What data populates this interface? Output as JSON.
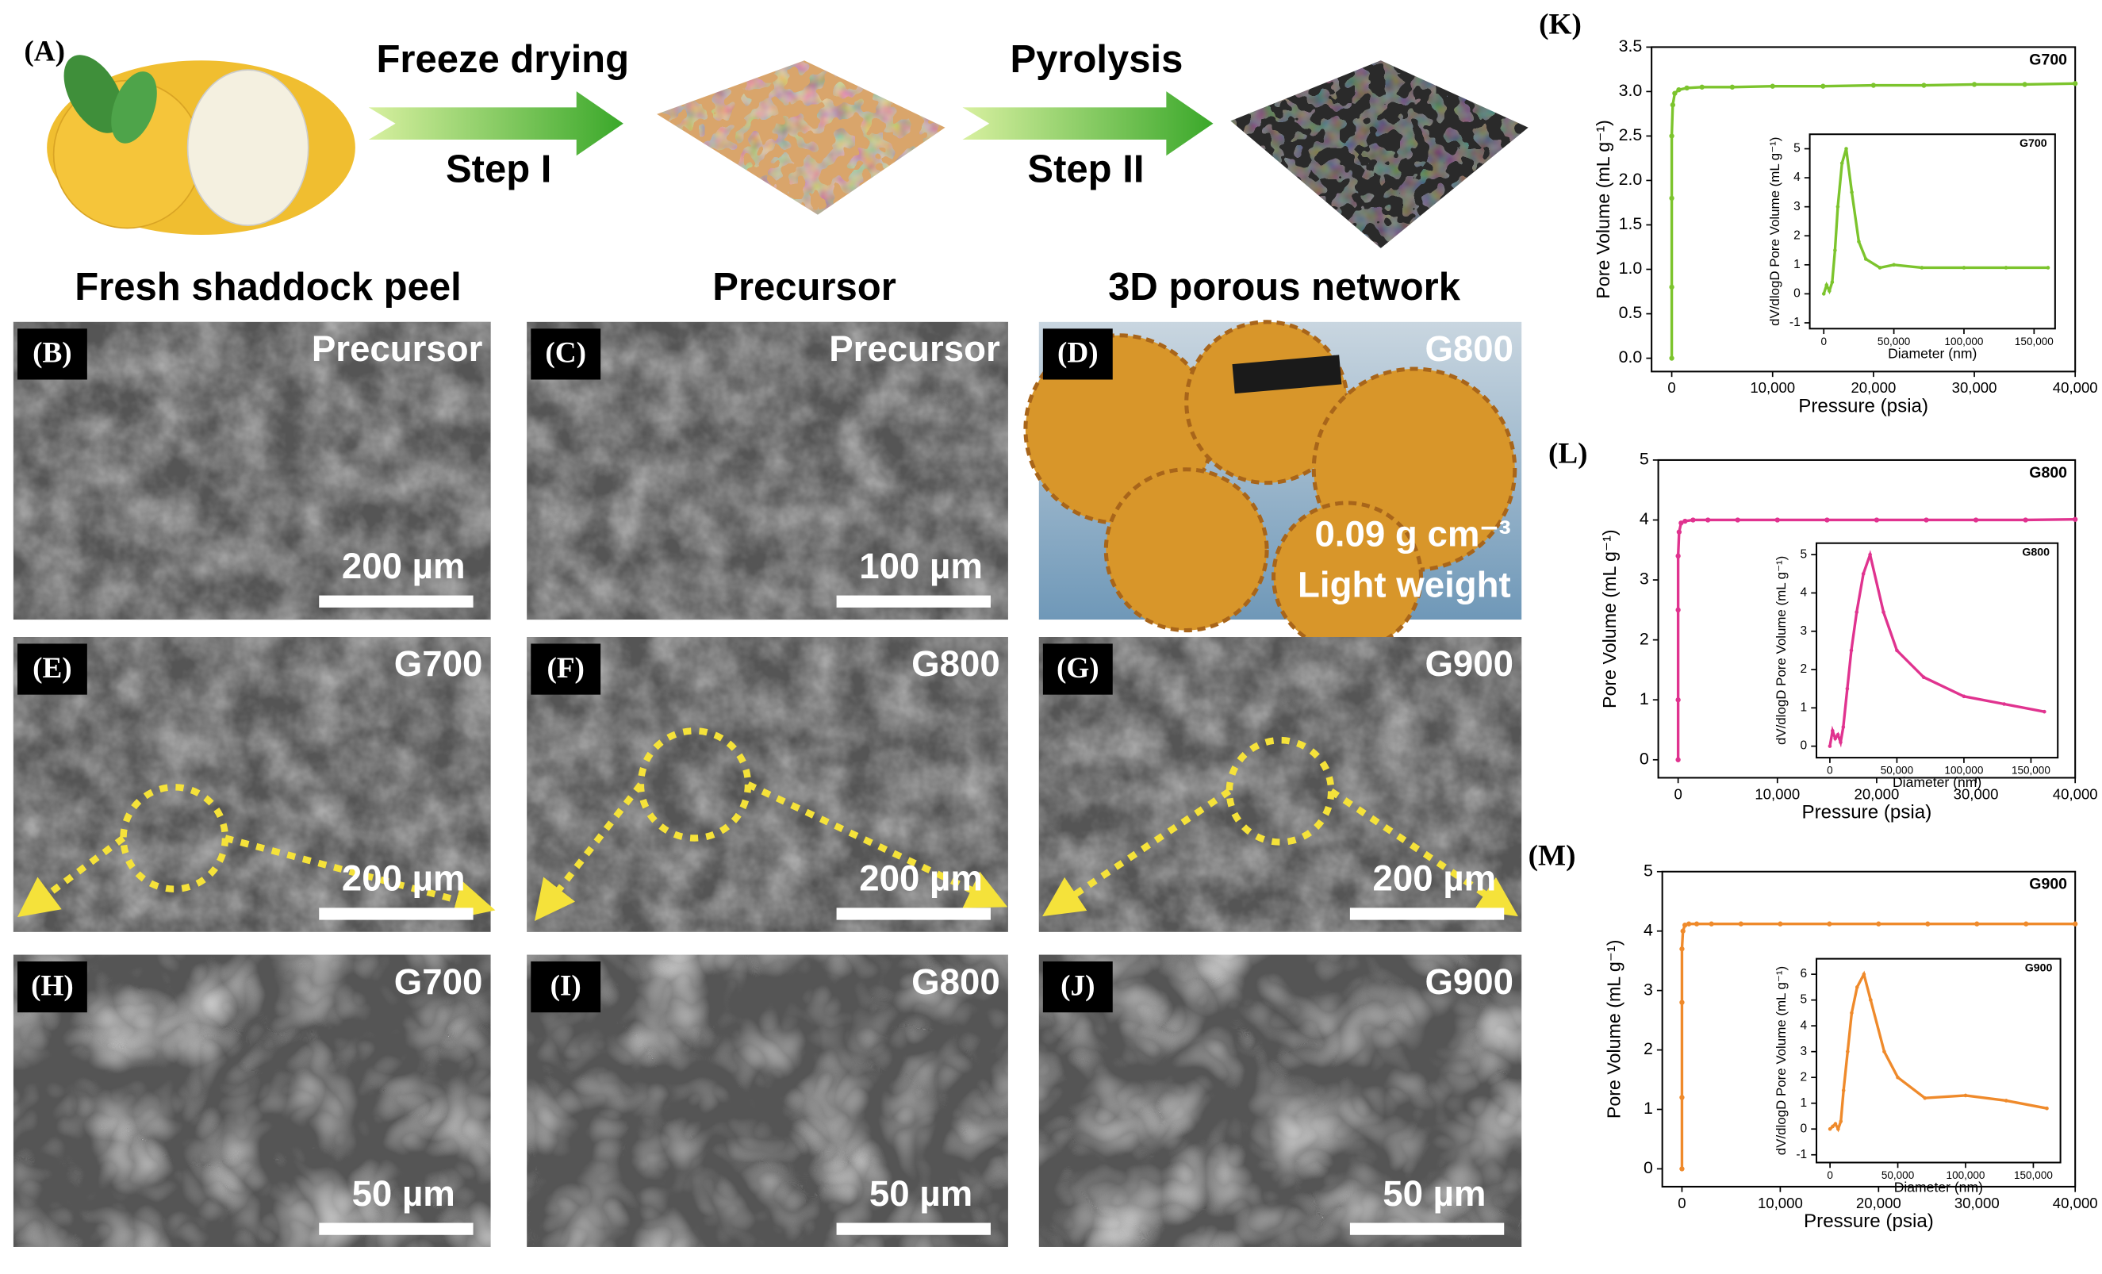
{
  "figure": {
    "panel_a": {
      "label": "(A)",
      "step1_name": "Freeze drying",
      "step1": "Step I",
      "step2_name": "Pyrolysis",
      "step2": "Step II"
    },
    "headers": [
      "Fresh shaddock peel",
      "Precursor",
      "3D porous network"
    ],
    "panels": [
      {
        "label": "(B)",
        "sample": "Precursor",
        "scale": "200 µm"
      },
      {
        "label": "(C)",
        "sample": "Precursor",
        "scale": "100 µm"
      },
      {
        "label": "(D)",
        "sample": "G800",
        "density": "0.09 g cm⁻³",
        "note": "Light weight"
      },
      {
        "label": "(E)",
        "sample": "G700",
        "scale": "200 µm"
      },
      {
        "label": "(F)",
        "sample": "G800",
        "scale": "200 µm"
      },
      {
        "label": "(G)",
        "sample": "G900",
        "scale": "200 µm"
      },
      {
        "label": "(H)",
        "sample": "G700",
        "scale": "50 µm"
      },
      {
        "label": "(I)",
        "sample": "G800",
        "scale": "50 µm"
      },
      {
        "label": "(J)",
        "sample": "G900",
        "scale": "50 µm"
      }
    ]
  },
  "chart_data": [
    {
      "type": "line",
      "panel": "(K)",
      "xlabel": "Pressure (psia)",
      "ylabel": "Pore Volume (mL g⁻¹)",
      "xlim": [
        -2000,
        40000
      ],
      "ylim": [
        -0.15,
        3.5
      ],
      "xticks": [
        0,
        {
          "value": 10000,
          "label": "10,000"
        },
        {
          "value": 20000,
          "label": "20,000"
        },
        {
          "value": 30000,
          "label": "30,000"
        },
        {
          "value": 40000,
          "label": "40,000"
        }
      ],
      "yticks": [
        {
          "value": 0,
          "label": "0.0"
        },
        {
          "value": 0.5,
          "label": "0.5"
        },
        {
          "value": 1,
          "label": "1.0"
        },
        {
          "value": 1.5,
          "label": "1.5"
        },
        {
          "value": 2,
          "label": "2.0"
        },
        {
          "value": 2.5,
          "label": "2.5"
        },
        {
          "value": 3,
          "label": "3.0"
        },
        {
          "value": 3.5,
          "label": "3.5"
        }
      ],
      "series": [
        {
          "name": "G700",
          "color": "#7cc42d",
          "x": [
            0,
            0,
            0,
            0,
            100,
            300,
            700,
            1500,
            3000,
            6000,
            10000,
            15000,
            20000,
            25000,
            30000,
            35000,
            40000
          ],
          "values": [
            0,
            0.8,
            1.8,
            2.5,
            2.85,
            2.98,
            3.02,
            3.04,
            3.05,
            3.05,
            3.06,
            3.06,
            3.07,
            3.07,
            3.08,
            3.08,
            3.09
          ]
        }
      ],
      "inset": {
        "type": "line",
        "xlabel": "Diameter (nm)",
        "ylabel": "dV/dlogD Pore Volume (mL g⁻¹)",
        "xlim": [
          -10000,
          165000
        ],
        "ylim": [
          -1.2,
          5.5
        ],
        "xticks": [
          0,
          {
            "value": 50000,
            "label": "50,000"
          },
          {
            "value": 100000,
            "label": "100,000"
          },
          {
            "value": 150000,
            "label": "150,000"
          }
        ],
        "yticks": [
          -1,
          0,
          1,
          2,
          3,
          4,
          5
        ],
        "series": [
          {
            "name": "G700",
            "color": "#7cc42d",
            "x": [
              0,
              2000,
              4000,
              6000,
              8000,
              10000,
              13000,
              16000,
              20000,
              25000,
              30000,
              40000,
              50000,
              70000,
              100000,
              130000,
              160000
            ],
            "values": [
              0,
              0.3,
              0.1,
              0.4,
              1.5,
              3,
              4.5,
              5,
              3.5,
              1.8,
              1.2,
              0.9,
              1,
              0.9,
              0.9,
              0.9,
              0.9
            ]
          }
        ]
      }
    },
    {
      "type": "line",
      "panel": "(L)",
      "xlabel": "Pressure (psia)",
      "ylabel": "Pore Volume (mL g⁻¹)",
      "xlim": [
        -2000,
        40000
      ],
      "ylim": [
        -0.3,
        5
      ],
      "xticks": [
        0,
        {
          "value": 10000,
          "label": "10,000"
        },
        {
          "value": 20000,
          "label": "20,000"
        },
        {
          "value": 30000,
          "label": "30,000"
        },
        {
          "value": 40000,
          "label": "40,000"
        }
      ],
      "yticks": [
        0,
        1,
        2,
        3,
        4,
        5
      ],
      "series": [
        {
          "name": "G800",
          "color": "#e0338f",
          "x": [
            0,
            0,
            0,
            0,
            100,
            300,
            700,
            1500,
            3000,
            6000,
            10000,
            15000,
            20000,
            25000,
            30000,
            35000,
            40000
          ],
          "values": [
            0,
            1,
            2.5,
            3.4,
            3.8,
            3.95,
            3.98,
            4,
            4,
            4,
            4,
            4,
            4,
            4,
            4,
            4,
            4.01
          ]
        }
      ],
      "inset": {
        "type": "line",
        "xlabel": "Diameter (nm)",
        "ylabel": "dV/dlogD Pore Volume (mL g⁻¹)",
        "xlim": [
          -10000,
          170000
        ],
        "ylim": [
          -0.3,
          5.3
        ],
        "xticks": [
          0,
          {
            "value": 50000,
            "label": "50,000"
          },
          {
            "value": 100000,
            "label": "100,000"
          },
          {
            "value": 150000,
            "label": "150,000"
          }
        ],
        "yticks": [
          0,
          1,
          2,
          3,
          4,
          5
        ],
        "series": [
          {
            "name": "G800",
            "color": "#e0338f",
            "x": [
              0,
              2000,
              4000,
              6000,
              8000,
              10000,
              13000,
              16000,
              20000,
              25000,
              30000,
              40000,
              50000,
              70000,
              100000,
              130000,
              160000
            ],
            "values": [
              0,
              0.4,
              0.2,
              0.3,
              0.1,
              0.5,
              1.5,
              2.5,
              3.5,
              4.5,
              5,
              3.5,
              2.5,
              1.8,
              1.3,
              1.1,
              0.9
            ]
          }
        ]
      }
    },
    {
      "type": "line",
      "panel": "(M)",
      "xlabel": "Pressure (psia)",
      "ylabel": "Pore Volume (mL g⁻¹)",
      "xlim": [
        -2000,
        40000
      ],
      "ylim": [
        -0.3,
        5
      ],
      "xticks": [
        0,
        {
          "value": 10000,
          "label": "10,000"
        },
        {
          "value": 20000,
          "label": "20,000"
        },
        {
          "value": 30000,
          "label": "30,000"
        },
        {
          "value": 40000,
          "label": "40,000"
        }
      ],
      "yticks": [
        0,
        1,
        2,
        3,
        4,
        5
      ],
      "series": [
        {
          "name": "G900",
          "color": "#ef8a2b",
          "x": [
            0,
            0,
            0,
            0,
            100,
            300,
            700,
            1500,
            3000,
            6000,
            10000,
            15000,
            20000,
            25000,
            30000,
            35000,
            40000
          ],
          "values": [
            0,
            1.2,
            2.8,
            3.7,
            4,
            4.1,
            4.12,
            4.12,
            4.12,
            4.12,
            4.12,
            4.12,
            4.12,
            4.12,
            4.12,
            4.12,
            4.12
          ]
        }
      ],
      "inset": {
        "type": "line",
        "xlabel": "Diameter (nm)",
        "ylabel": "dV/dlogD Pore Volume (mL g⁻¹)",
        "xlim": [
          -10000,
          170000
        ],
        "ylim": [
          -1.3,
          6.6
        ],
        "xticks": [
          0,
          {
            "value": 50000,
            "label": "50,000"
          },
          {
            "value": 100000,
            "label": "100,000"
          },
          {
            "value": 150000,
            "label": "150,000"
          }
        ],
        "yticks": [
          -1,
          0,
          1,
          2,
          3,
          4,
          5,
          6
        ],
        "series": [
          {
            "name": "G900",
            "color": "#ef8a2b",
            "x": [
              0,
              2000,
              4000,
              6000,
              8000,
              10000,
              13000,
              16000,
              20000,
              25000,
              30000,
              40000,
              50000,
              70000,
              100000,
              130000,
              160000
            ],
            "values": [
              0,
              0.1,
              0.2,
              0,
              0.3,
              1.5,
              3,
              4.5,
              5.5,
              6,
              5,
              3,
              2,
              1.2,
              1.3,
              1.1,
              0.8
            ]
          }
        ]
      }
    }
  ]
}
